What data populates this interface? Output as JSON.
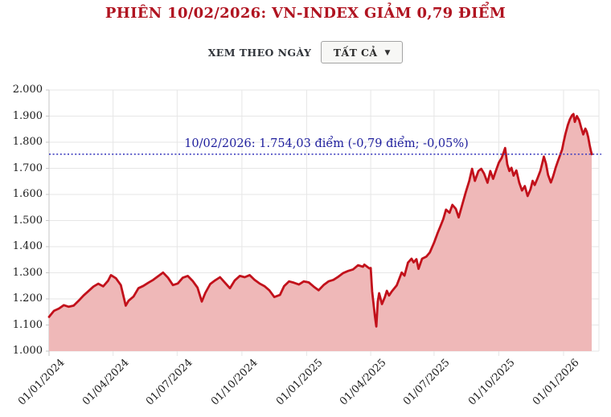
{
  "title": "PHIÊN 10/02/2026: VN-INDEX GIẢM 0,79 ĐIỂM",
  "controls": {
    "label": "XEM THEO NGÀY",
    "dropdown_value": "TẤT CẢ",
    "caret": "▼"
  },
  "annotation": {
    "text": "10/02/2026: 1.754,03 điểm (-0,79 điểm; -0,05%)",
    "value": 1754.03
  },
  "colors": {
    "title": "#b01320",
    "line": "#c2111b",
    "fill": "#efb8b8",
    "annotation": "#20209e",
    "dotted_line": "#4040c0",
    "grid": "#e6e6e6",
    "axis": "#c6c6c6",
    "label_text": "#1c1c1c"
  },
  "chart_data": {
    "type": "area",
    "title": "VN-Index",
    "xlabel": "",
    "ylabel": "",
    "ylim": [
      1000,
      2000
    ],
    "y_tick_labels": [
      "2.000",
      "1.900",
      "1.800",
      "1.700",
      "1.600",
      "1.500",
      "1.400",
      "1.300",
      "1.200",
      "1.100",
      "1.000"
    ],
    "x_tick_labels": [
      "01/01/2024",
      "01/04/2024",
      "01/07/2024",
      "01/10/2024",
      "01/01/2025",
      "01/04/2025",
      "01/07/2025",
      "01/10/2025",
      "01/01/2026"
    ],
    "tick_day_offsets": [
      0,
      91,
      182,
      274,
      366,
      457,
      547,
      639,
      731
    ],
    "start_date": "01/01/2024",
    "end_date": "10/02/2026",
    "last_point": {
      "date": "10/02/2026",
      "value": 1754.03,
      "change": "-0,79",
      "change_pct": "-0,05%"
    },
    "reference_value": 1754.03,
    "grid": true,
    "points": [
      [
        0,
        1131
      ],
      [
        7,
        1154
      ],
      [
        14,
        1163
      ],
      [
        21,
        1176
      ],
      [
        28,
        1170
      ],
      [
        35,
        1174
      ],
      [
        42,
        1193
      ],
      [
        49,
        1213
      ],
      [
        56,
        1230
      ],
      [
        63,
        1247
      ],
      [
        70,
        1258
      ],
      [
        77,
        1248
      ],
      [
        84,
        1270
      ],
      [
        88,
        1291
      ],
      [
        95,
        1279
      ],
      [
        102,
        1253
      ],
      [
        109,
        1174
      ],
      [
        113,
        1193
      ],
      [
        120,
        1209
      ],
      [
        127,
        1241
      ],
      [
        134,
        1250
      ],
      [
        141,
        1262
      ],
      [
        148,
        1273
      ],
      [
        155,
        1287
      ],
      [
        162,
        1301
      ],
      [
        169,
        1281
      ],
      [
        176,
        1253
      ],
      [
        183,
        1259
      ],
      [
        190,
        1281
      ],
      [
        197,
        1288
      ],
      [
        204,
        1269
      ],
      [
        211,
        1243
      ],
      [
        217,
        1190
      ],
      [
        222,
        1223
      ],
      [
        229,
        1257
      ],
      [
        236,
        1271
      ],
      [
        243,
        1283
      ],
      [
        250,
        1262
      ],
      [
        257,
        1241
      ],
      [
        264,
        1271
      ],
      [
        271,
        1288
      ],
      [
        278,
        1283
      ],
      [
        285,
        1291
      ],
      [
        292,
        1273
      ],
      [
        299,
        1259
      ],
      [
        306,
        1249
      ],
      [
        313,
        1233
      ],
      [
        320,
        1207
      ],
      [
        328,
        1215
      ],
      [
        334,
        1249
      ],
      [
        341,
        1267
      ],
      [
        348,
        1262
      ],
      [
        355,
        1255
      ],
      [
        362,
        1267
      ],
      [
        369,
        1263
      ],
      [
        376,
        1247
      ],
      [
        383,
        1233
      ],
      [
        390,
        1253
      ],
      [
        397,
        1267
      ],
      [
        404,
        1273
      ],
      [
        411,
        1285
      ],
      [
        418,
        1299
      ],
      [
        425,
        1307
      ],
      [
        432,
        1313
      ],
      [
        439,
        1329
      ],
      [
        446,
        1323
      ],
      [
        448,
        1331
      ],
      [
        455,
        1317
      ],
      [
        457,
        1318
      ],
      [
        459,
        1229
      ],
      [
        463,
        1132
      ],
      [
        465,
        1094
      ],
      [
        467,
        1190
      ],
      [
        469,
        1222
      ],
      [
        473,
        1180
      ],
      [
        477,
        1206
      ],
      [
        480,
        1231
      ],
      [
        483,
        1213
      ],
      [
        487,
        1229
      ],
      [
        494,
        1252
      ],
      [
        501,
        1301
      ],
      [
        505,
        1289
      ],
      [
        510,
        1339
      ],
      [
        515,
        1354
      ],
      [
        518,
        1340
      ],
      [
        522,
        1352
      ],
      [
        525,
        1315
      ],
      [
        530,
        1354
      ],
      [
        536,
        1362
      ],
      [
        541,
        1378
      ],
      [
        547,
        1415
      ],
      [
        552,
        1452
      ],
      [
        556,
        1478
      ],
      [
        560,
        1505
      ],
      [
        564,
        1542
      ],
      [
        569,
        1530
      ],
      [
        573,
        1560
      ],
      [
        578,
        1545
      ],
      [
        582,
        1512
      ],
      [
        587,
        1560
      ],
      [
        592,
        1608
      ],
      [
        597,
        1652
      ],
      [
        601,
        1698
      ],
      [
        605,
        1652
      ],
      [
        610,
        1690
      ],
      [
        614,
        1698
      ],
      [
        618,
        1680
      ],
      [
        623,
        1645
      ],
      [
        627,
        1690
      ],
      [
        631,
        1660
      ],
      [
        635,
        1692
      ],
      [
        639,
        1722
      ],
      [
        643,
        1740
      ],
      [
        646,
        1762
      ],
      [
        648,
        1778
      ],
      [
        651,
        1715
      ],
      [
        654,
        1690
      ],
      [
        657,
        1702
      ],
      [
        660,
        1672
      ],
      [
        664,
        1692
      ],
      [
        668,
        1646
      ],
      [
        672,
        1615
      ],
      [
        676,
        1632
      ],
      [
        680,
        1594
      ],
      [
        684,
        1620
      ],
      [
        687,
        1652
      ],
      [
        690,
        1636
      ],
      [
        694,
        1662
      ],
      [
        698,
        1690
      ],
      [
        701,
        1722
      ],
      [
        703,
        1745
      ],
      [
        706,
        1718
      ],
      [
        709,
        1675
      ],
      [
        713,
        1646
      ],
      [
        716,
        1668
      ],
      [
        720,
        1705
      ],
      [
        723,
        1728
      ],
      [
        726,
        1750
      ],
      [
        729,
        1772
      ],
      [
        731,
        1800
      ],
      [
        734,
        1835
      ],
      [
        737,
        1866
      ],
      [
        740,
        1888
      ],
      [
        743,
        1903
      ],
      [
        745,
        1908
      ],
      [
        747,
        1878
      ],
      [
        750,
        1900
      ],
      [
        753,
        1885
      ],
      [
        756,
        1856
      ],
      [
        759,
        1830
      ],
      [
        762,
        1852
      ],
      [
        764,
        1840
      ],
      [
        766,
        1820
      ],
      [
        768,
        1790
      ],
      [
        770,
        1765
      ],
      [
        771,
        1754.03
      ]
    ]
  }
}
